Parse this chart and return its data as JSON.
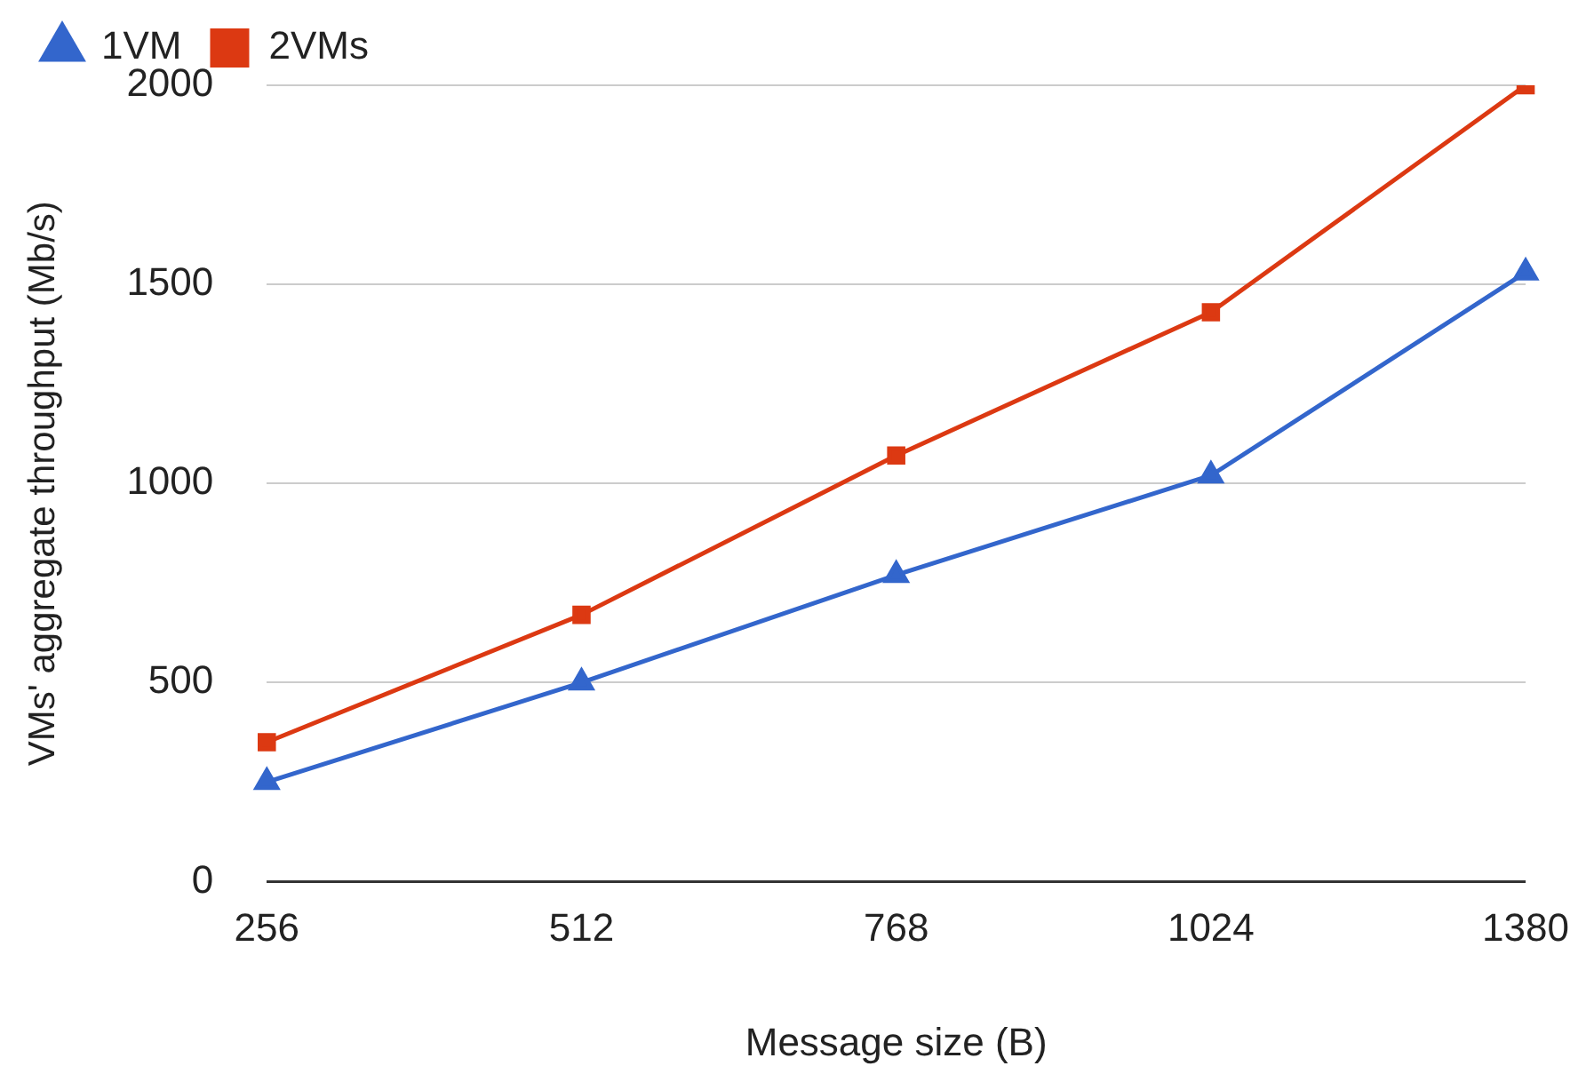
{
  "chart_data": {
    "type": "line",
    "xlabel": "Message size (B)",
    "ylabel": "VMs' aggregate throughput (Mb/s)",
    "categories": [
      "256",
      "512",
      "768",
      "1024",
      "1380"
    ],
    "series": [
      {
        "name": "1VM",
        "color": "#3366cc",
        "marker": "triangle",
        "values": [
          250,
          500,
          770,
          1020,
          1530
        ]
      },
      {
        "name": "2VMs",
        "color": "#dc3912",
        "marker": "square",
        "values": [
          350,
          670,
          1070,
          1430,
          2000
        ]
      }
    ],
    "ylim": [
      0,
      2000
    ],
    "yticks": [
      0,
      500,
      1000,
      1500,
      2000
    ],
    "grid": "y",
    "legend": "top left"
  }
}
